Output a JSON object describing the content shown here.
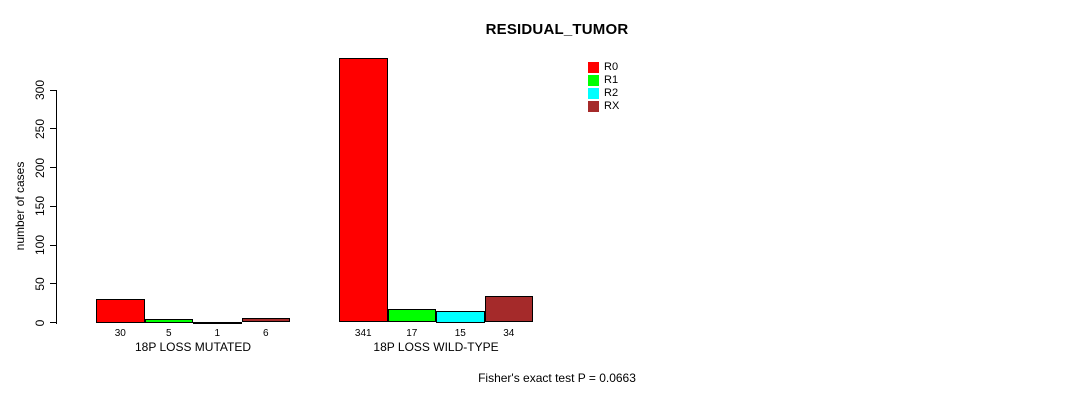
{
  "chart_data": {
    "type": "bar",
    "title": "RESIDUAL_TUMOR",
    "xlabel": "",
    "ylabel": "number of cases",
    "annotation": "Fisher's exact test P = 0.0663",
    "categories": [
      "18P LOSS MUTATED",
      "18P LOSS WILD-TYPE"
    ],
    "series": [
      {
        "name": "R0",
        "color": "#FF0000",
        "values": [
          30,
          341
        ]
      },
      {
        "name": "R1",
        "color": "#00FF00",
        "values": [
          5,
          17
        ]
      },
      {
        "name": "R2",
        "color": "#00FFFF",
        "values": [
          1,
          15
        ]
      },
      {
        "name": "RX",
        "color": "#A52A2A",
        "values": [
          6,
          34
        ]
      }
    ],
    "yticks": [
      0,
      50,
      100,
      150,
      200,
      250,
      300
    ],
    "ylim": [
      0,
      345
    ],
    "grid": false,
    "legend_position": "top-right",
    "bar_border_color": "#000000",
    "text_color": "#000000",
    "background_color": "#FFFFFF"
  }
}
